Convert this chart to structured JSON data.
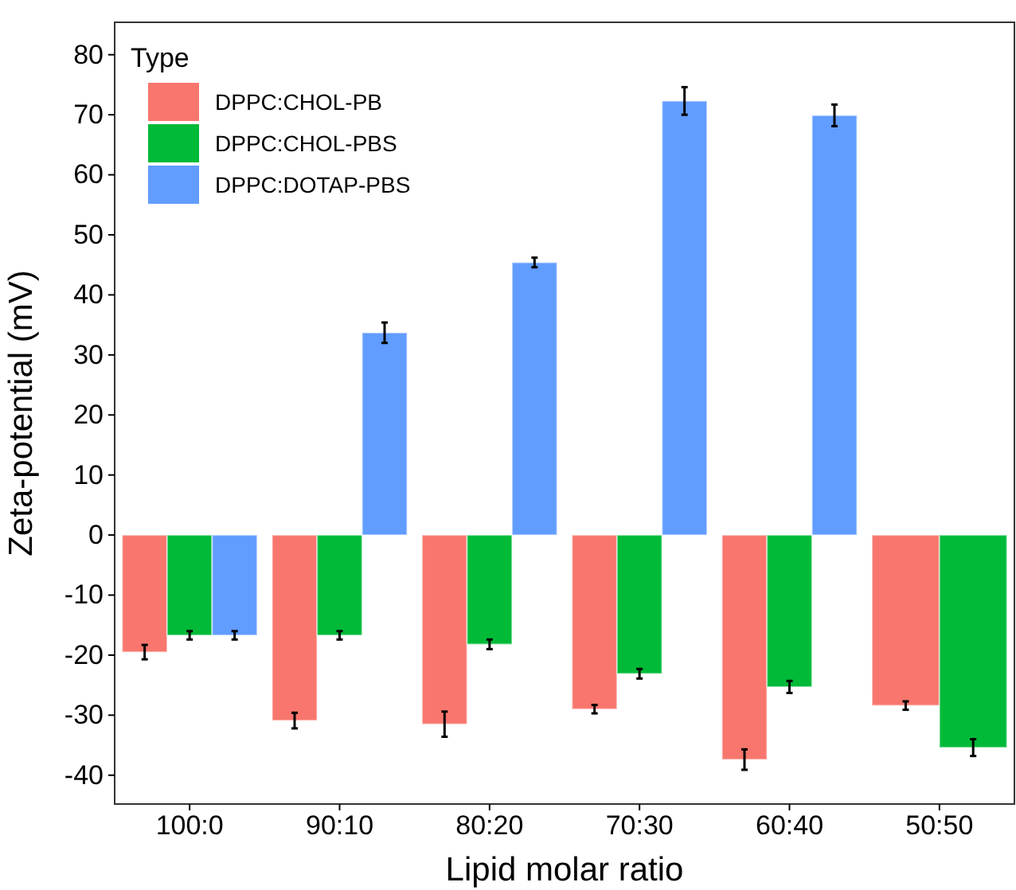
{
  "chart_data": {
    "type": "bar",
    "xlabel": "Lipid molar ratio",
    "ylabel": "Zeta-potential (mV)",
    "legend_title": "Type",
    "legend": "top left",
    "grid": false,
    "categories": [
      "100:0",
      "90:10",
      "80:20",
      "70:30",
      "60:40",
      "50:50"
    ],
    "series": [
      {
        "name": "DPPC:CHOL-PB",
        "color": "#f8766d",
        "values": [
          -19.5,
          -30.9,
          -31.5,
          -29.0,
          -37.4,
          -28.4
        ],
        "errors": [
          1.2,
          1.3,
          2.1,
          0.7,
          1.7,
          0.7
        ]
      },
      {
        "name": "DPPC:CHOL-PBS",
        "color": "#00ba38",
        "values": [
          -16.7,
          -16.7,
          -18.2,
          -23.1,
          -25.3,
          -35.4
        ],
        "errors": [
          0.7,
          0.7,
          0.8,
          0.8,
          1.0,
          1.4
        ]
      },
      {
        "name": "DPPC:DOTAP-PBS",
        "color": "#619cff",
        "values": [
          -16.7,
          33.7,
          45.4,
          72.3,
          69.9,
          null
        ],
        "errors": [
          0.7,
          1.7,
          0.8,
          2.3,
          1.8,
          null
        ]
      }
    ],
    "ylim": [
      -44.8,
      85.4
    ],
    "yticks": [
      -40,
      -30,
      -20,
      -10,
      0,
      10,
      20,
      30,
      40,
      50,
      60,
      70,
      80
    ]
  }
}
